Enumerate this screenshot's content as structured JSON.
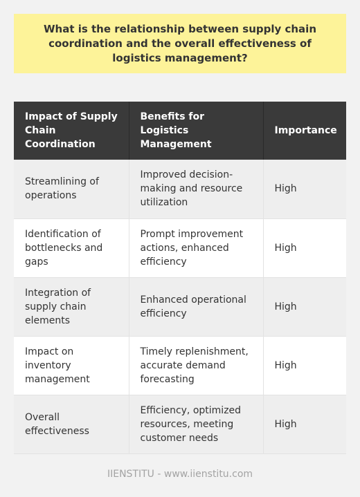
{
  "question": "What is the relationship between supply chain coordination and the overall effectiveness of logistics management?",
  "table": {
    "headers": [
      "Impact of Supply Chain Coordination",
      "Benefits for Logistics Management",
      "Importance"
    ],
    "rows": [
      [
        "Streamlining of operations",
        "Improved decision-making and resource utilization",
        "High"
      ],
      [
        "Identification of bottlenecks and gaps",
        "Prompt improvement actions, enhanced efficiency",
        "High"
      ],
      [
        "Integration of supply chain elements",
        "Enhanced operational efficiency",
        "High"
      ],
      [
        "Impact on inventory management",
        "Timely replenishment, accurate demand forecasting",
        "High"
      ],
      [
        "Overall effectiveness",
        "Efficiency, optimized resources, meeting customer needs",
        "High"
      ]
    ]
  },
  "footer": "IIENSTITU - www.iienstitu.com"
}
